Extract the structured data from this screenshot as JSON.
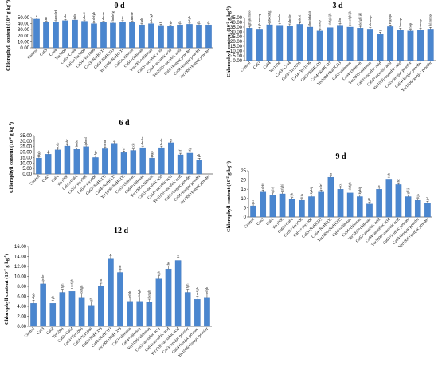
{
  "colors": {
    "bar": "#4a86cf",
    "bar_edge": "#3a6fb5",
    "axis": "#555555"
  },
  "categories": [
    "Control",
    "Ca63",
    "Ca64",
    "Yer1006",
    "Ca63+Ca64",
    "Ca63+Yer1006",
    "Ca64+Yer1006",
    "Ca63+NaHCO3",
    "Ca64+NaHCO3",
    "Yer1006+NaHCO3",
    "Ca63+chitosan",
    "Ca64+chitosan",
    "Yer1006+chitosan",
    "Ca63+ascorbic acid",
    "Ca64+ascorbic acid",
    "Yer1006+ascorbic acid",
    "Ca63+konjac powder",
    "Ca64+konjac powder",
    "Yer1006+konjac powder"
  ],
  "ylabel_prefix": "Chlorophyll content (10",
  "ylabel_sup1": "-2",
  "ylabel_mid": " g kg",
  "ylabel_sup2": "-1",
  "ylabel_suffix": ")",
  "chart_data": [
    {
      "type": "bar",
      "title": "0 d",
      "ylim": [
        0,
        50
      ],
      "yticks": [
        0,
        10,
        20,
        30,
        40,
        50
      ],
      "values": [
        47.5,
        42,
        43,
        45,
        46,
        44,
        40,
        42,
        41,
        43,
        42,
        38,
        40,
        37,
        36,
        38,
        39,
        38,
        38
      ],
      "letters": [
        "a",
        "ab",
        "abcdef",
        "abc",
        "ab",
        "abcd",
        "cdefgh",
        "abcde",
        "bcdefg",
        "ab",
        "abcde",
        "fgh",
        "defgh",
        "h",
        "gh",
        "h",
        "efgh",
        "h",
        "h"
      ]
    },
    {
      "type": "bar",
      "title": "3 d",
      "ylim": [
        0,
        45
      ],
      "yticks": [
        0,
        5,
        10,
        15,
        20,
        25,
        30,
        35,
        40,
        45
      ],
      "values": [
        34,
        33,
        37.5,
        37,
        36.5,
        38,
        35,
        31,
        34.5,
        37,
        35,
        34,
        33,
        28,
        35.5,
        32,
        31,
        32,
        33
      ],
      "letters": [
        "ghijklmno",
        "ijklmnop",
        "abcdefg",
        "abcde",
        "abcdef",
        "abcd",
        "bcdefghij",
        "mnop",
        "defghijk",
        "abc",
        "cdefghijk",
        "defghijkl",
        "klmnop",
        "p",
        "efghijk",
        "lmnop",
        "nop",
        "mnop",
        "jklmnop"
      ]
    },
    {
      "type": "bar",
      "title": "6 d",
      "ylim": [
        0,
        35
      ],
      "yticks": [
        0,
        5,
        10,
        15,
        20,
        25,
        30,
        35
      ],
      "values": [
        14.5,
        18,
        22,
        25.5,
        22.5,
        25,
        15,
        23,
        28,
        19.5,
        21.5,
        24,
        14.5,
        24,
        28.5,
        17.5,
        19,
        13,
        0
      ],
      "letters": [
        "fgh",
        "e",
        "cde",
        "abc",
        "bcde",
        "abcd",
        "fgh",
        "bcde",
        "a",
        "ef",
        "cde",
        "abcde",
        "fgh",
        "bcde",
        "a",
        "ef",
        "fg",
        "gh",
        ""
      ]
    },
    {
      "type": "bar",
      "title": "9 d",
      "ylim": [
        0,
        25
      ],
      "yticks": [
        0,
        5,
        10,
        15,
        20,
        25
      ],
      "values": [
        6,
        13.5,
        12,
        12.5,
        9.5,
        9,
        11,
        13.5,
        21.5,
        15,
        13,
        11,
        7,
        15,
        20.5,
        17.5,
        11,
        9,
        7.5
      ],
      "letters": [
        "kl",
        "defg",
        "ghij",
        "efghi",
        "ijk",
        "ijk",
        "fghij",
        "cdef",
        "a",
        "cd",
        "defgh",
        "fghij",
        "jkl",
        "c",
        "ab",
        "bc",
        "ghij",
        "ijk",
        "jkl"
      ]
    },
    {
      "type": "bar",
      "title": "12 d",
      "ylim": [
        0,
        16
      ],
      "yticks": [
        0,
        2,
        4,
        6,
        8,
        10,
        12,
        14,
        16
      ],
      "values": [
        4.6,
        8.5,
        4.6,
        6.8,
        7,
        5.8,
        4.2,
        8,
        13.5,
        10.8,
        5,
        5,
        4.8,
        9.5,
        11.5,
        13.2,
        6.8,
        5.4,
        5.8
      ],
      "letters": [
        "efgh",
        "cde",
        "gh",
        "fgh",
        "defgh",
        "defgh",
        "gh",
        "cd",
        "a",
        "bc",
        "efgh",
        "defgh",
        "defgh",
        "gh",
        "bc",
        "a",
        "fgh",
        "defgh",
        "efgh"
      ]
    }
  ]
}
